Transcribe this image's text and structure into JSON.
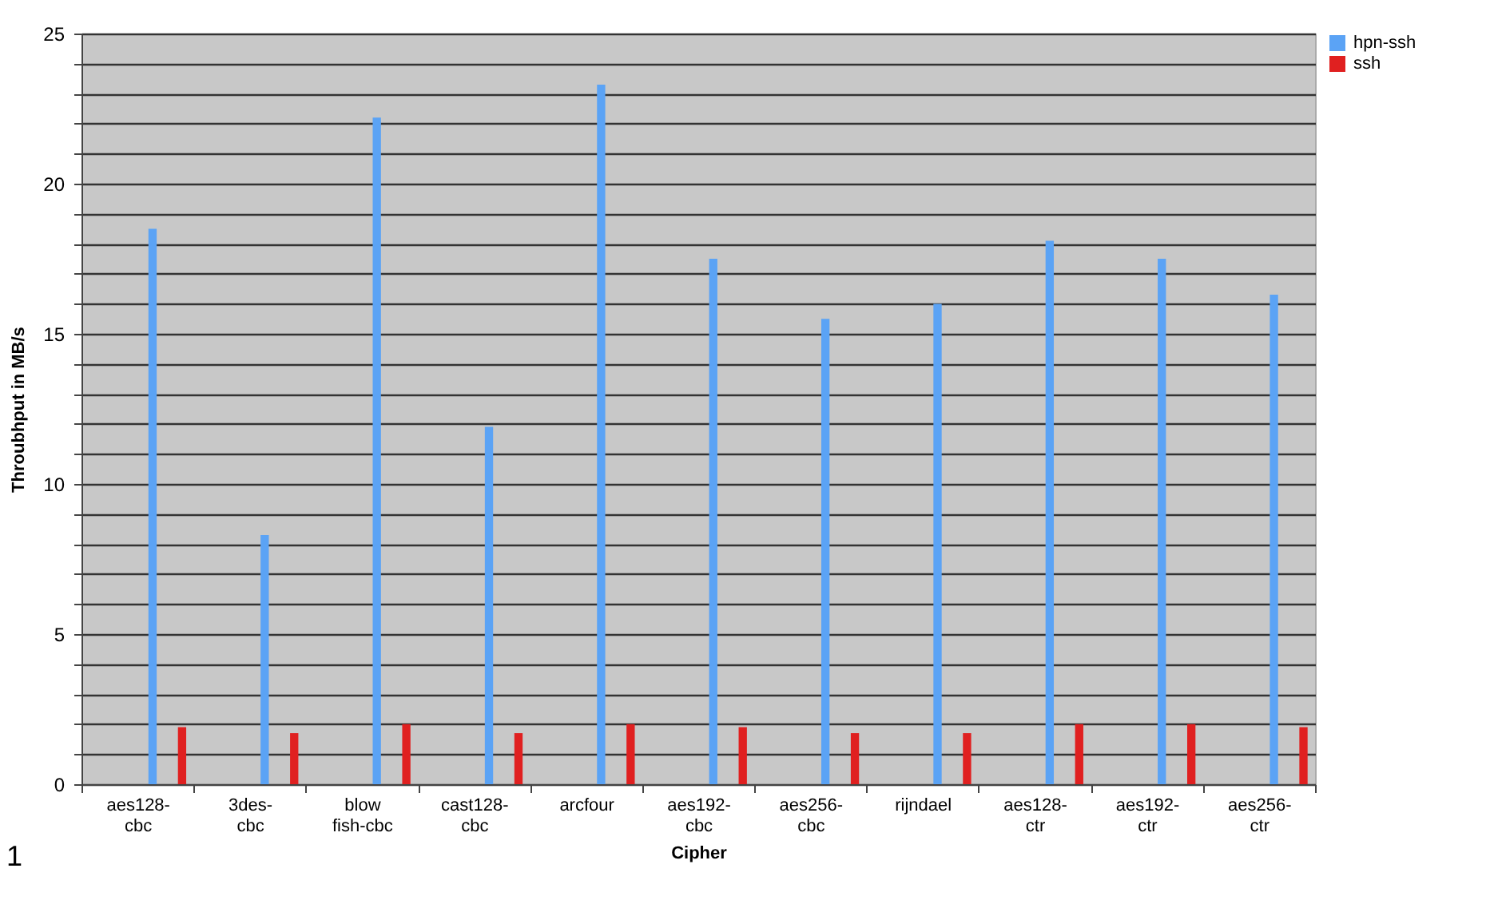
{
  "chart_data": {
    "type": "bar",
    "xlabel": "Cipher",
    "ylabel": "Throubhput in MB/s",
    "categories": [
      "aes128-cbc",
      "3des-cbc",
      "blow fish-cbc",
      "cast128-cbc",
      "arcfour",
      "aes192-cbc",
      "aes256-cbc",
      "rijndael",
      "aes128-ctr",
      "aes192-ctr",
      "aes256-ctr"
    ],
    "series": [
      {
        "name": "hpn-ssh",
        "color": "#5ba3f5",
        "values": [
          18.5,
          8.3,
          22.2,
          11.9,
          23.3,
          17.5,
          15.5,
          16.0,
          18.1,
          17.5,
          16.3
        ]
      },
      {
        "name": "ssh",
        "color": "#e02020",
        "values": [
          1.9,
          1.7,
          2.0,
          1.7,
          2.0,
          1.9,
          1.7,
          1.7,
          2.0,
          2.0,
          1.9
        ]
      }
    ],
    "ylim": [
      0,
      25
    ],
    "yticks": [
      0,
      {
        "value": 1,
        "label": null
      },
      {
        "value": 2,
        "label": null
      },
      {
        "value": 3,
        "label": null
      },
      {
        "value": 4,
        "label": null
      },
      5,
      {
        "value": 6,
        "label": null
      },
      {
        "value": 7,
        "label": null
      },
      {
        "value": 8,
        "label": null
      },
      {
        "value": 9,
        "label": null
      },
      10,
      {
        "value": 11,
        "label": null
      },
      {
        "value": 12,
        "label": null
      },
      {
        "value": 13,
        "label": null
      },
      {
        "value": 14,
        "label": null
      },
      15,
      {
        "value": 16,
        "label": null
      },
      {
        "value": 17,
        "label": null
      },
      {
        "value": 18,
        "label": null
      },
      {
        "value": 19,
        "label": null
      },
      20,
      {
        "value": 21,
        "label": null
      },
      {
        "value": 22,
        "label": null
      },
      {
        "value": 23,
        "label": null
      },
      {
        "value": 24,
        "label": null
      },
      25
    ],
    "grid": "y",
    "legend": "right",
    "annotations": [
      "1"
    ]
  }
}
